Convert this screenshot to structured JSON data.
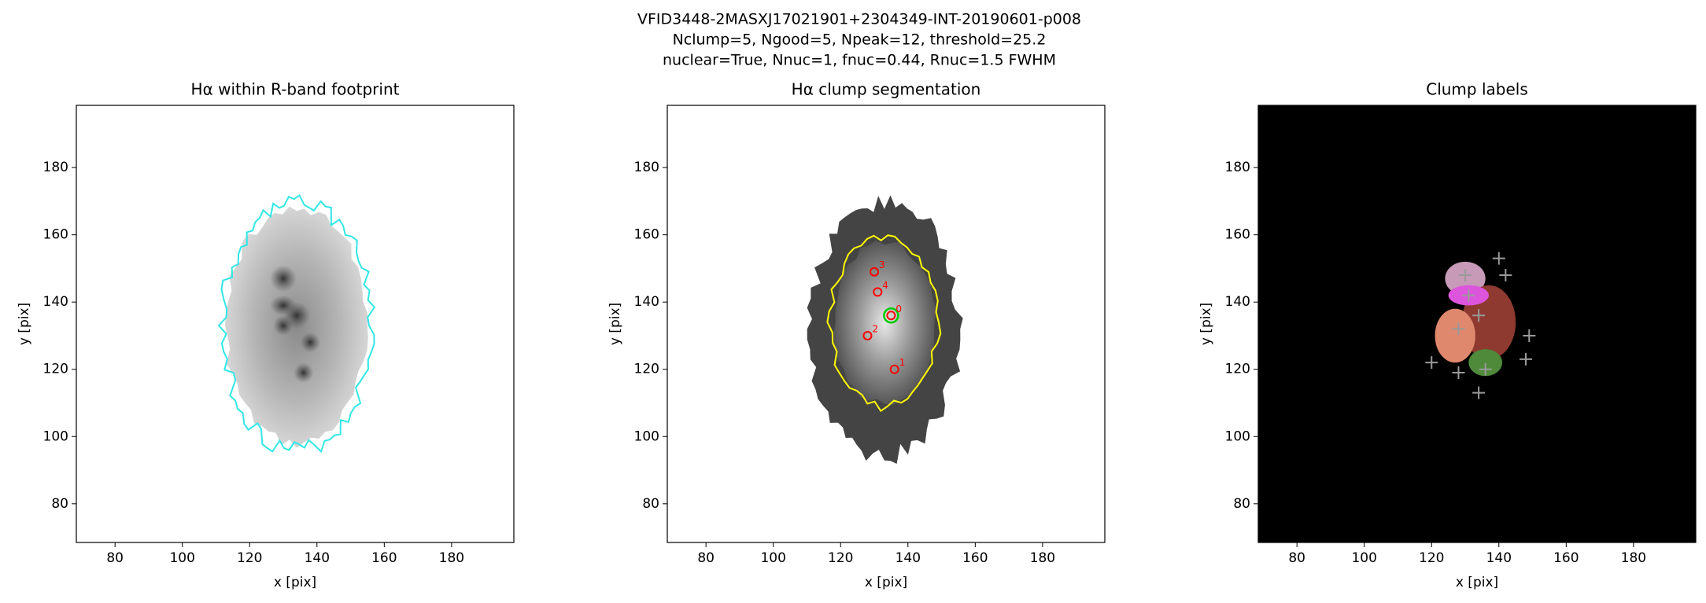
{
  "suptitle": [
    "VFID3448-2MASXJ17021901+2304349-INT-20190601-p008",
    "Nclump=5, Ngood=5, Npeak=12, threshold=25.2",
    "nuclear=True, Nnuc=1, fnuc=0.44, Rnuc=1.5 FWHM"
  ],
  "chart_data": [
    {
      "type": "image",
      "title": "Hα within R-band footprint",
      "xlabel": "x [pix]",
      "ylabel": "y [pix]",
      "xlim": [
        68.5,
        198.5
      ],
      "ylim": [
        68.5,
        198.5
      ],
      "xticks": [
        80,
        100,
        120,
        140,
        160,
        180
      ],
      "yticks": [
        80,
        100,
        120,
        140,
        160,
        180
      ]
    },
    {
      "type": "image",
      "title": "Hα clump segmentation",
      "xlabel": "x [pix]",
      "ylabel": "y [pix]",
      "xlim": [
        68.5,
        198.5
      ],
      "ylim": [
        68.5,
        198.5
      ],
      "xticks": [
        80,
        100,
        120,
        140,
        160,
        180
      ],
      "yticks": [
        80,
        100,
        120,
        140,
        160,
        180
      ],
      "points": {
        "color": "#ff0000",
        "x": [
          135,
          136,
          128,
          130,
          131
        ],
        "y": [
          136,
          120,
          130,
          149,
          143
        ],
        "labels": [
          "0",
          "1",
          "2",
          "3",
          "4"
        ]
      },
      "nuclear": {
        "color": "#00cc00",
        "x": [
          135
        ],
        "y": [
          136
        ]
      }
    },
    {
      "type": "image",
      "title": "Clump labels",
      "xlabel": "x [pix]",
      "ylabel": "y [pix]",
      "xlim": [
        68.5,
        198.5
      ],
      "ylim": [
        68.5,
        198.5
      ],
      "xticks": [
        80,
        100,
        120,
        140,
        160,
        180
      ],
      "yticks": [
        80,
        100,
        120,
        140,
        160,
        180
      ],
      "peaks": {
        "color": "#9a9a9a",
        "x": [
          130,
          140,
          142,
          131,
          134,
          128,
          149,
          120,
          128,
          136,
          148,
          134
        ],
        "y": [
          148,
          153,
          148,
          142,
          136,
          132,
          130,
          122,
          119,
          120,
          123,
          113
        ]
      }
    }
  ]
}
